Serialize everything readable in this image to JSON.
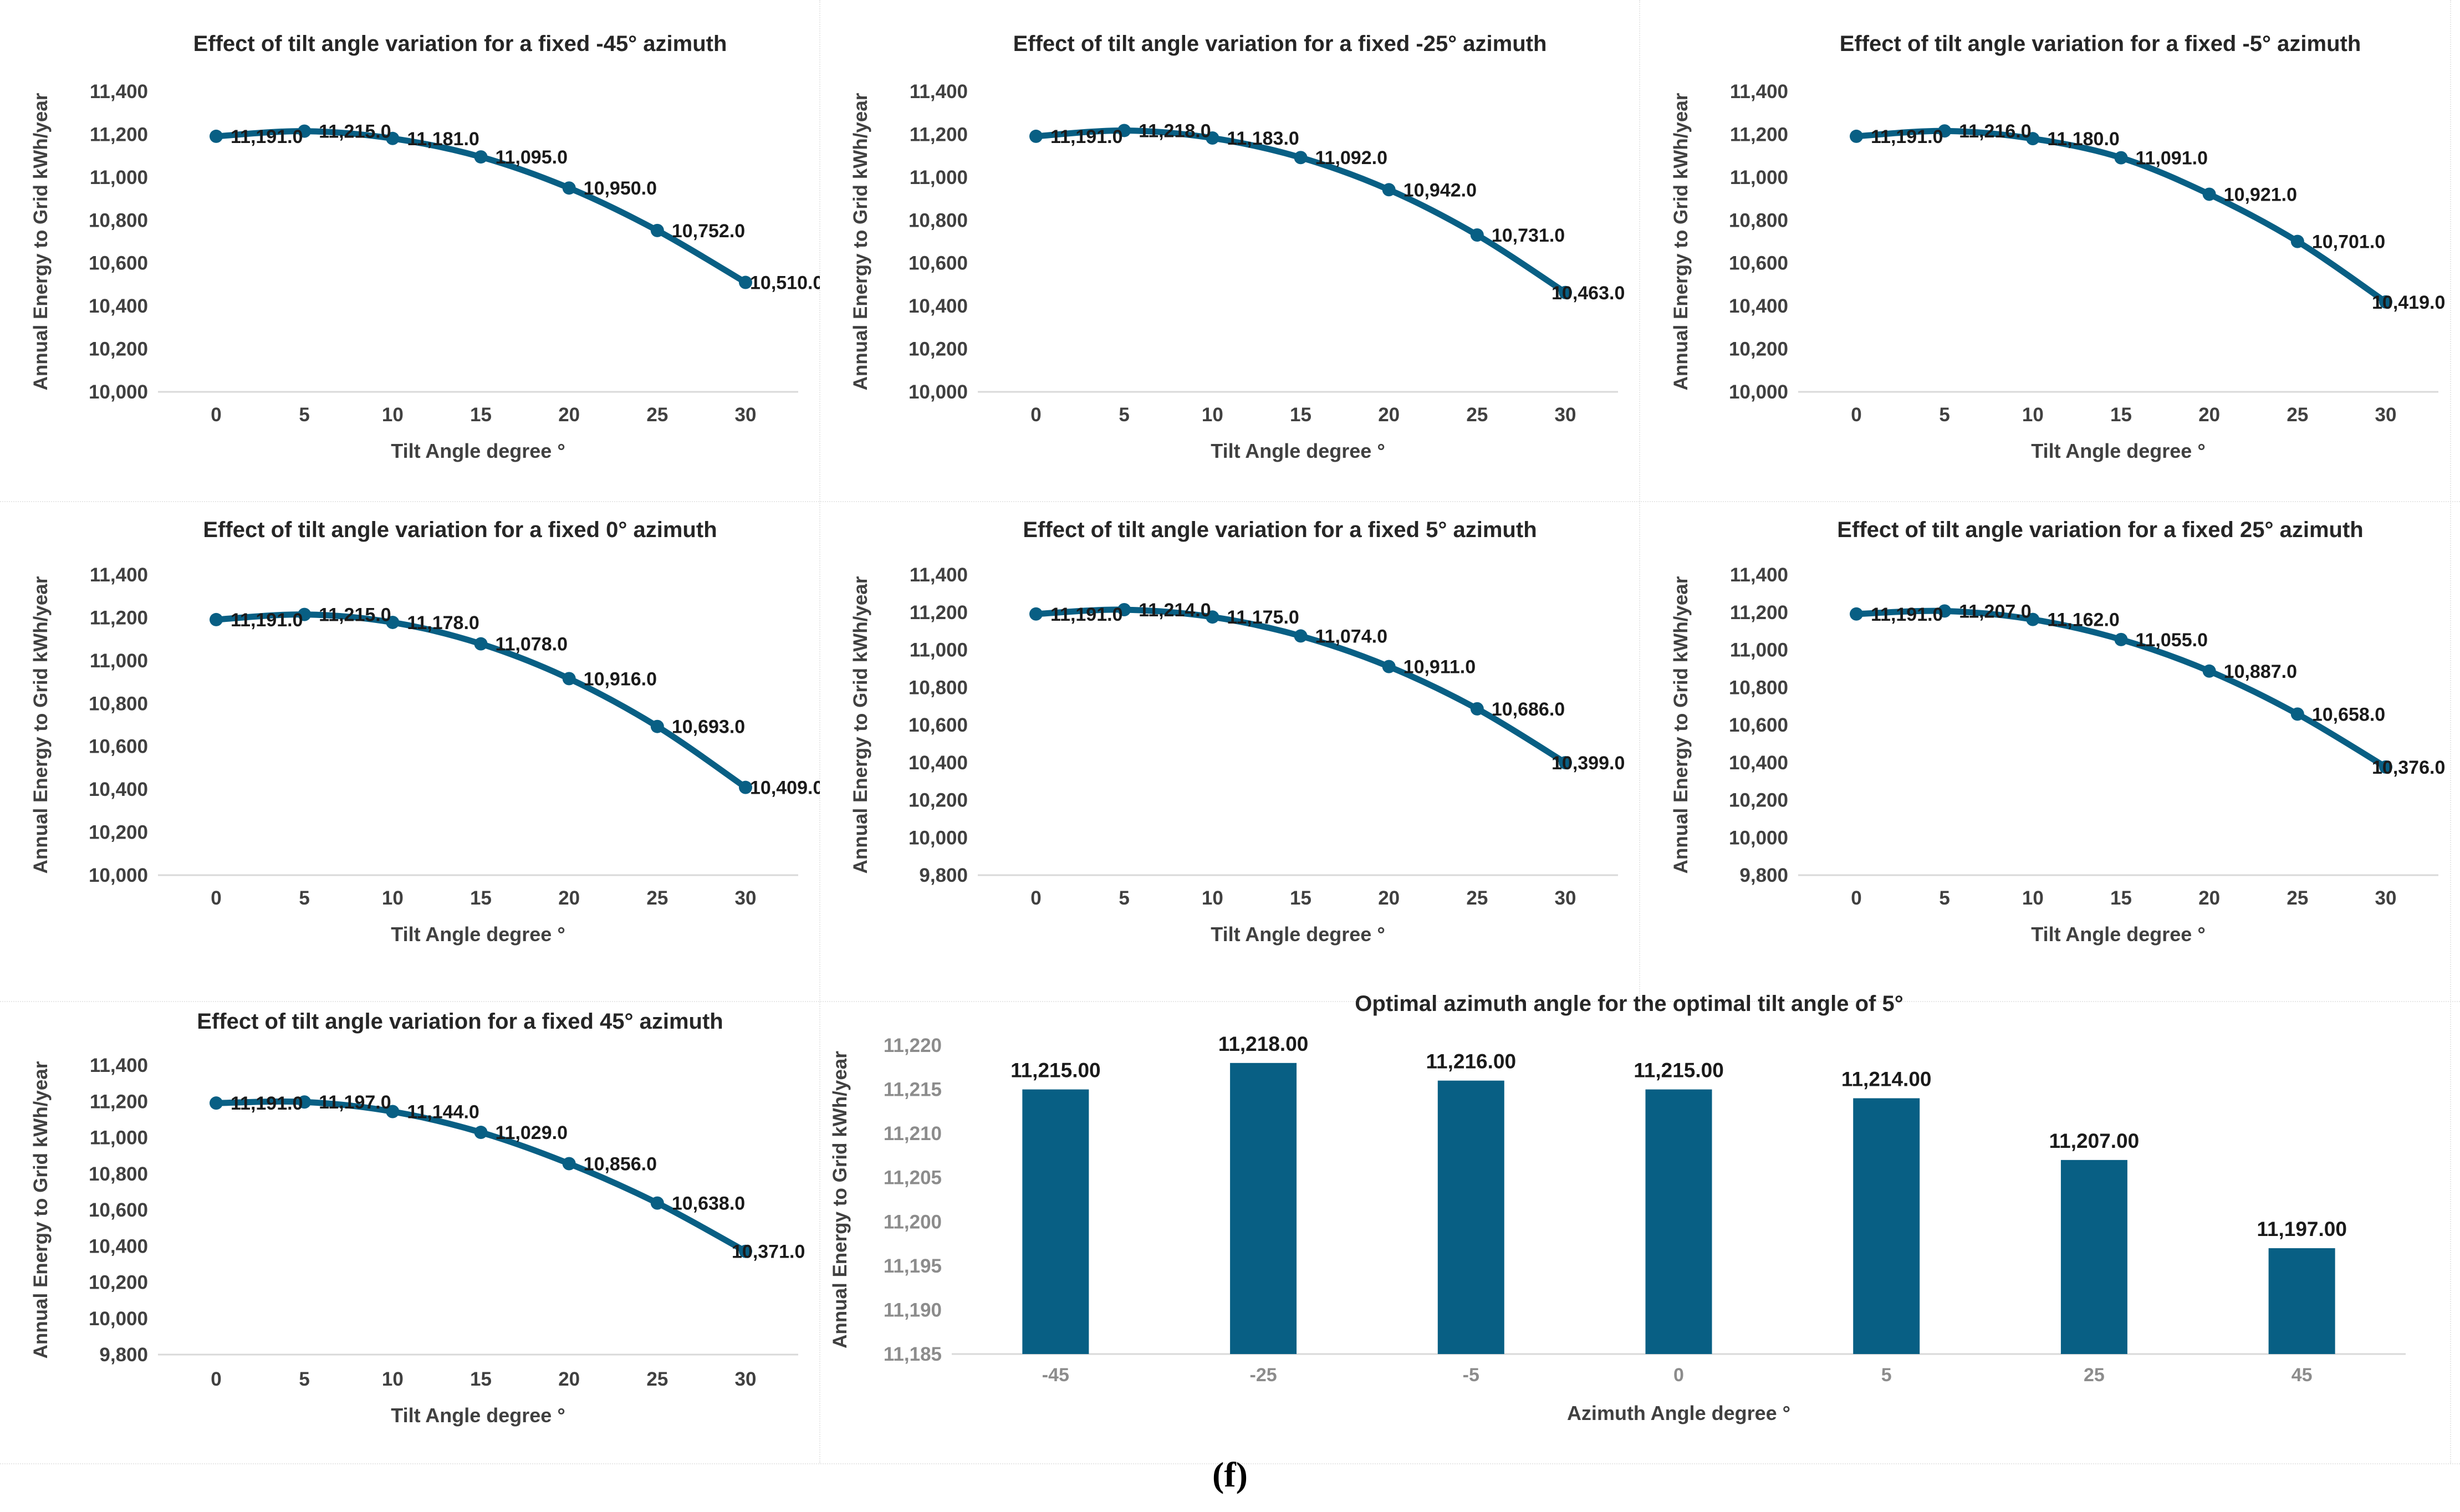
{
  "page": {
    "caption": "(f)",
    "background": "#ffffff"
  },
  "colors": {
    "series": "#085f84",
    "axis_line": "#d9d9d9",
    "tick_label": "#404040",
    "bar_tick_label": "#8c8c8c",
    "title": "#262626",
    "data_label": "#1a1a1a",
    "axis_title": "#404040",
    "caption": "#000000"
  },
  "chart_data": [
    {
      "type": "line",
      "title": "Effect of tilt angle variation for a fixed -45° azimuth",
      "x": [
        0,
        5,
        10,
        15,
        20,
        25,
        30
      ],
      "values": [
        11191,
        11215,
        11181,
        11095,
        10950,
        10752,
        10510
      ],
      "xlabel": "Tilt Angle degree °",
      "ylabel": "Annual Energy to Grid kWh/year",
      "ylim": [
        10000,
        11400
      ],
      "ytick_step": 200,
      "label_decimals": 1,
      "grid": false,
      "legend": "none"
    },
    {
      "type": "line",
      "title": "Effect of tilt angle variation for a fixed -25° azimuth",
      "x": [
        0,
        5,
        10,
        15,
        20,
        25,
        30
      ],
      "values": [
        11191,
        11218,
        11183,
        11092,
        10942,
        10731,
        10463
      ],
      "xlabel": "Tilt Angle degree °",
      "ylabel": "Annual Energy to Grid kWh/year",
      "ylim": [
        10000,
        11400
      ],
      "ytick_step": 200,
      "label_decimals": 1,
      "grid": false,
      "legend": "none"
    },
    {
      "type": "line",
      "title": "Effect of tilt angle variation for a fixed -5° azimuth",
      "x": [
        0,
        5,
        10,
        15,
        20,
        25,
        30
      ],
      "values": [
        11191,
        11216,
        11180,
        11091,
        10921,
        10701,
        10419
      ],
      "xlabel": "Tilt Angle degree °",
      "ylabel": "Annual Energy to Grid kWh/year",
      "ylim": [
        10000,
        11400
      ],
      "ytick_step": 200,
      "label_decimals": 1,
      "grid": false,
      "legend": "none"
    },
    {
      "type": "line",
      "title": "Effect of tilt angle variation for a fixed 0° azimuth",
      "x": [
        0,
        5,
        10,
        15,
        20,
        25,
        30
      ],
      "values": [
        11191,
        11215,
        11178,
        11078,
        10916,
        10693,
        10409
      ],
      "xlabel": "Tilt Angle degree °",
      "ylabel": "Annual Energy to Grid kWh/year",
      "ylim": [
        10000,
        11400
      ],
      "ytick_step": 200,
      "label_decimals": 1,
      "grid": false,
      "legend": "none"
    },
    {
      "type": "line",
      "title": "Effect of tilt angle variation for a fixed 5° azimuth",
      "x": [
        0,
        5,
        10,
        15,
        20,
        25,
        30
      ],
      "values": [
        11191,
        11214,
        11175,
        11074,
        10911,
        10686,
        10399
      ],
      "xlabel": "Tilt Angle degree °",
      "ylabel": "Annual Energy to Grid kWh/year",
      "ylim": [
        9800,
        11400
      ],
      "ytick_step": 200,
      "label_decimals": 1,
      "grid": false,
      "legend": "none"
    },
    {
      "type": "line",
      "title": "Effect of tilt angle variation for a fixed 25° azimuth",
      "x": [
        0,
        5,
        10,
        15,
        20,
        25,
        30
      ],
      "values": [
        11191,
        11207,
        11162,
        11055,
        10887,
        10658,
        10376
      ],
      "xlabel": "Tilt Angle degree °",
      "ylabel": "Annual Energy to Grid kWh/year",
      "ylim": [
        9800,
        11400
      ],
      "ytick_step": 200,
      "label_decimals": 1,
      "grid": false,
      "legend": "none"
    },
    {
      "type": "line",
      "title": "Effect of tilt angle variation for a fixed 45° azimuth",
      "x": [
        0,
        5,
        10,
        15,
        20,
        25,
        30
      ],
      "values": [
        11191,
        11197,
        11144,
        11029,
        10856,
        10638,
        10371
      ],
      "xlabel": "Tilt Angle degree °",
      "ylabel": "Annual Energy to Grid kWh/year",
      "ylim": [
        9800,
        11400
      ],
      "ytick_step": 200,
      "label_decimals": 1,
      "grid": false,
      "legend": "none"
    },
    {
      "type": "bar",
      "title": "Optimal azimuth angle for the optimal tilt angle of  5°",
      "categories": [
        "-45",
        "-25",
        "-5",
        "0",
        "5",
        "25",
        "45"
      ],
      "values": [
        11215,
        11218,
        11216,
        11215,
        11214,
        11207,
        11197
      ],
      "xlabel": "Azimuth Angle degree °",
      "ylabel": "Annual Energy to Grid kWh/year",
      "ylim": [
        11185,
        11220
      ],
      "ytick_step": 5,
      "label_decimals": 2,
      "grid": false,
      "legend": "none"
    }
  ]
}
